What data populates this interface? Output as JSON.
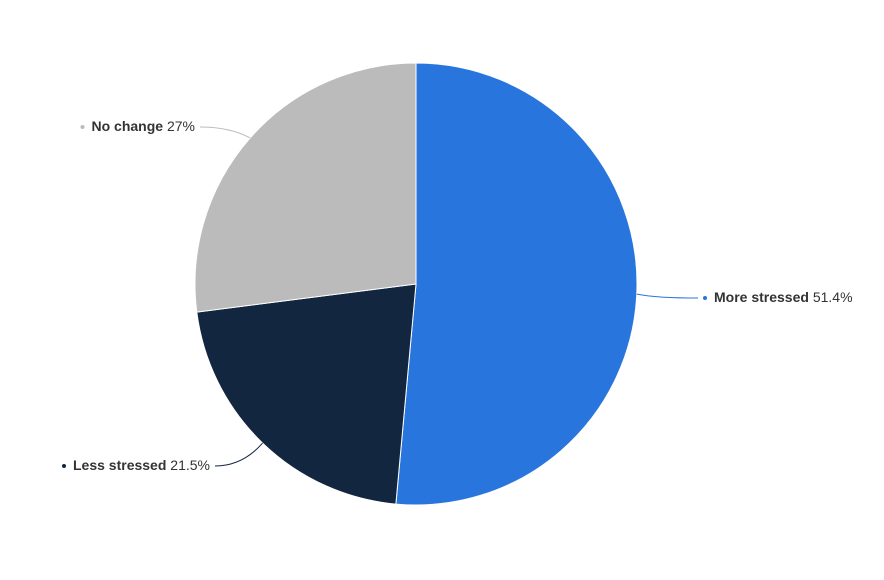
{
  "chart_data": {
    "type": "pie",
    "categories": [
      "More stressed",
      "Less stressed",
      "No change"
    ],
    "values": [
      51.4,
      21.5,
      27
    ],
    "value_labels": [
      "51.4%",
      "21.5%",
      "27%"
    ],
    "colors": [
      "#2876dd",
      "#12263f",
      "#bbbbbb"
    ]
  }
}
